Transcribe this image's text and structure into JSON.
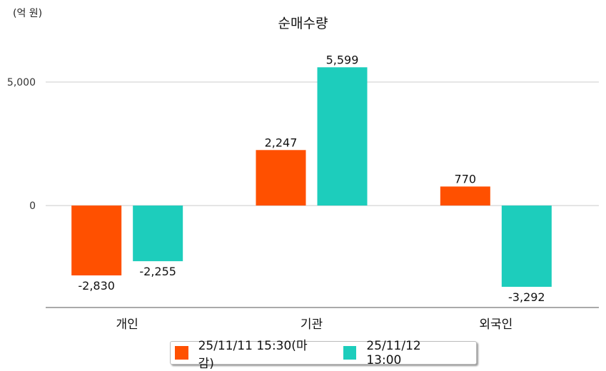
{
  "chart_data": {
    "type": "bar",
    "title": "순매수량",
    "unit_label": "(억 원)",
    "categories": [
      "개인",
      "기관",
      "외국인"
    ],
    "series": [
      {
        "name": "25/11/11 15:30(마감)",
        "color": "#FF5000",
        "values": [
          -2830,
          2247,
          770
        ],
        "labels": [
          "-2,830",
          "2,247",
          "770"
        ]
      },
      {
        "name": "25/11/12 13:00",
        "color": "#1DCDBC",
        "values": [
          -2255,
          5599,
          -3292
        ],
        "labels": [
          "-2,255",
          "5,599",
          "-3,292"
        ]
      }
    ],
    "yticks": [
      {
        "value": 0,
        "label": "0"
      },
      {
        "value": 5000,
        "label": "5,000"
      }
    ],
    "ylim": [
      -4130,
      6590
    ],
    "grid": true,
    "legend_position": "bottom"
  }
}
